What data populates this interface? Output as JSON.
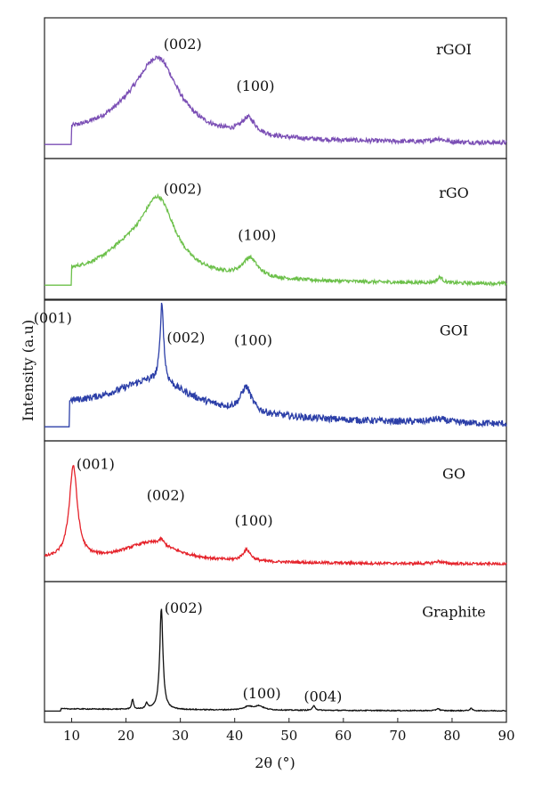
{
  "chart_data": {
    "type": "line",
    "xlabel": "2θ (°)",
    "ylabel": "Intensity (a.u)",
    "xlim": [
      5,
      90
    ],
    "xticks": [
      10,
      20,
      30,
      40,
      50,
      60,
      70,
      80,
      90
    ],
    "grid": false,
    "legend": "none",
    "panels": [
      {
        "name": "rGOI",
        "color": "#7b4fb5",
        "baseline": 0.1,
        "peaks": [
          [
            26.0,
            0.58,
            4.5
          ],
          [
            22.0,
            0.18,
            7.0
          ],
          [
            42.5,
            0.15,
            1.6
          ],
          [
            77.5,
            0.03,
            1.2
          ]
        ],
        "background": 0.08,
        "noise": 0.02,
        "onset": 10,
        "annotations": [
          {
            "label": "(002)",
            "x": 26.0
          },
          {
            "label": "(100)",
            "x": 42.5
          }
        ]
      },
      {
        "name": "rGO",
        "color": "#6cc04a",
        "baseline": 0.1,
        "peaks": [
          [
            26.0,
            0.62,
            3.8
          ],
          [
            20.5,
            0.2,
            6.0
          ],
          [
            42.8,
            0.17,
            1.7
          ],
          [
            77.8,
            0.05,
            0.6
          ]
        ],
        "background": 0.08,
        "noise": 0.015,
        "onset": 10,
        "annotations": [
          {
            "label": "(002)",
            "x": 26.0
          },
          {
            "label": "(100)",
            "x": 42.8
          }
        ]
      },
      {
        "name": "GOI",
        "color": "#2c3fa8",
        "baseline": 0.1,
        "peaks": [
          [
            26.6,
            0.7,
            0.4
          ],
          [
            25.0,
            0.3,
            9.0
          ],
          [
            42.1,
            0.22,
            1.2
          ],
          [
            77.5,
            0.03,
            2.0
          ]
        ],
        "background": 0.16,
        "noise": 0.03,
        "onset": 9.6,
        "annotations": [
          {
            "label": "(001)",
            "x": 9.8
          },
          {
            "label": "(002)",
            "x": 26.6
          },
          {
            "label": "(100)",
            "x": 42.1
          }
        ]
      },
      {
        "name": "GO",
        "color": "#e5232b",
        "baseline": 0.12,
        "peaks": [
          [
            10.3,
            0.82,
            0.9
          ],
          [
            24.5,
            0.17,
            6.0
          ],
          [
            26.5,
            0.05,
            0.6
          ],
          [
            42.2,
            0.1,
            0.9
          ],
          [
            77.5,
            0.02,
            1.0
          ]
        ],
        "background": 0.04,
        "noise": 0.012,
        "onset": 5,
        "annotations": [
          {
            "label": "(001)",
            "x": 10.3
          },
          {
            "label": "(002)",
            "x": 26.5
          },
          {
            "label": "(100)",
            "x": 42.2
          }
        ]
      },
      {
        "name": "Graphite",
        "color": "#111111",
        "baseline": 0.08,
        "peaks": [
          [
            26.5,
            0.9,
            0.35
          ],
          [
            21.2,
            0.09,
            0.2
          ],
          [
            23.8,
            0.05,
            0.25
          ],
          [
            42.5,
            0.03,
            1.0
          ],
          [
            44.5,
            0.035,
            1.0
          ],
          [
            54.6,
            0.04,
            0.3
          ],
          [
            77.4,
            0.02,
            0.3
          ],
          [
            83.5,
            0.02,
            0.3
          ]
        ],
        "background": 0.02,
        "noise": 0.004,
        "onset": 8,
        "annotations": [
          {
            "label": "(002)",
            "x": 26.5
          },
          {
            "label": "(100)",
            "x": 44.0
          },
          {
            "label": "(004)",
            "x": 54.6
          }
        ]
      }
    ]
  }
}
